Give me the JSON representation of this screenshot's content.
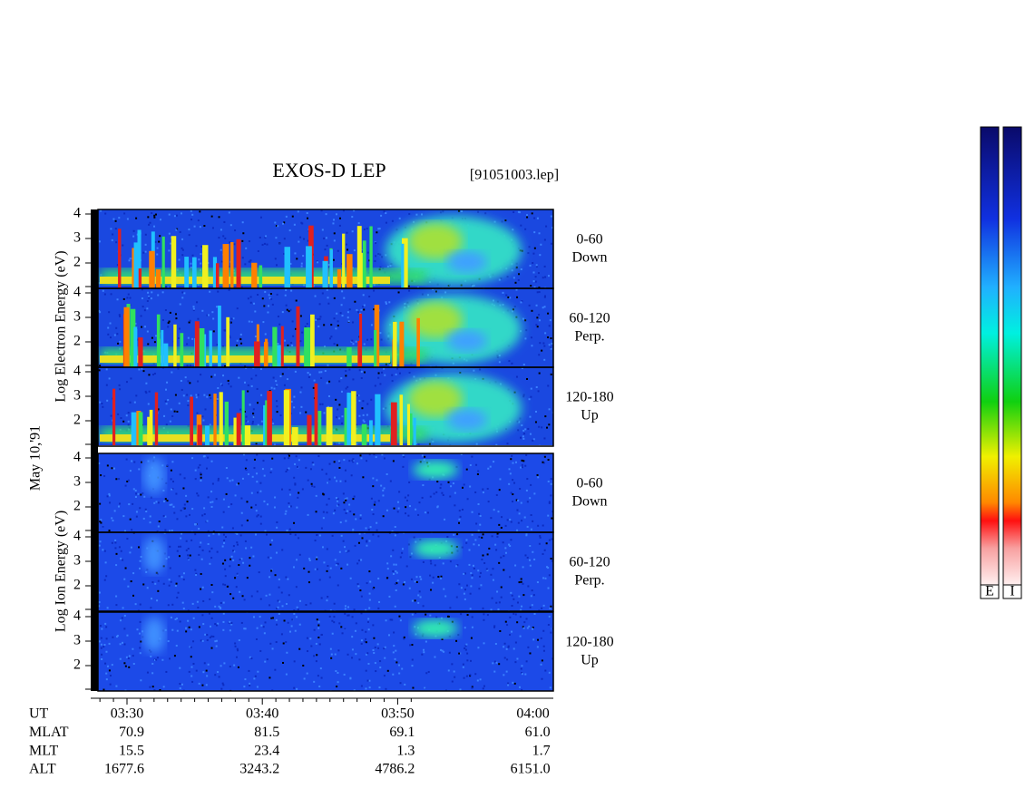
{
  "title": "EXOS-D LEP",
  "file": "[91051003.lep]",
  "date_label": "May 10,'91",
  "electron_axis_label": "Log  Electron  Energy (eV)",
  "ion_axis_label": "Log  Ion  Energy (eV)",
  "yticks": [
    2,
    3,
    4
  ],
  "panels": [
    {
      "range": "0-60",
      "direction": "Down"
    },
    {
      "range": "60-120",
      "direction": "Perp."
    },
    {
      "range": "120-180",
      "direction": "Up"
    },
    {
      "range": "0-60",
      "direction": "Down"
    },
    {
      "range": "60-120",
      "direction": "Perp."
    },
    {
      "range": "120-180",
      "direction": "Up"
    }
  ],
  "rows": [
    {
      "label": "UT",
      "values": [
        "03:30",
        "03:40",
        "03:50",
        "04:00"
      ]
    },
    {
      "label": "MLAT",
      "values": [
        "70.9",
        "81.5",
        "69.1",
        "61.0"
      ]
    },
    {
      "label": "MLT",
      "values": [
        "15.5",
        "23.4",
        "1.3",
        "1.7"
      ]
    },
    {
      "label": "ALT",
      "values": [
        "1677.6",
        "3243.2",
        "4786.2",
        "6151.0"
      ]
    }
  ],
  "colorbar_labels": [
    "E",
    "I"
  ]
}
